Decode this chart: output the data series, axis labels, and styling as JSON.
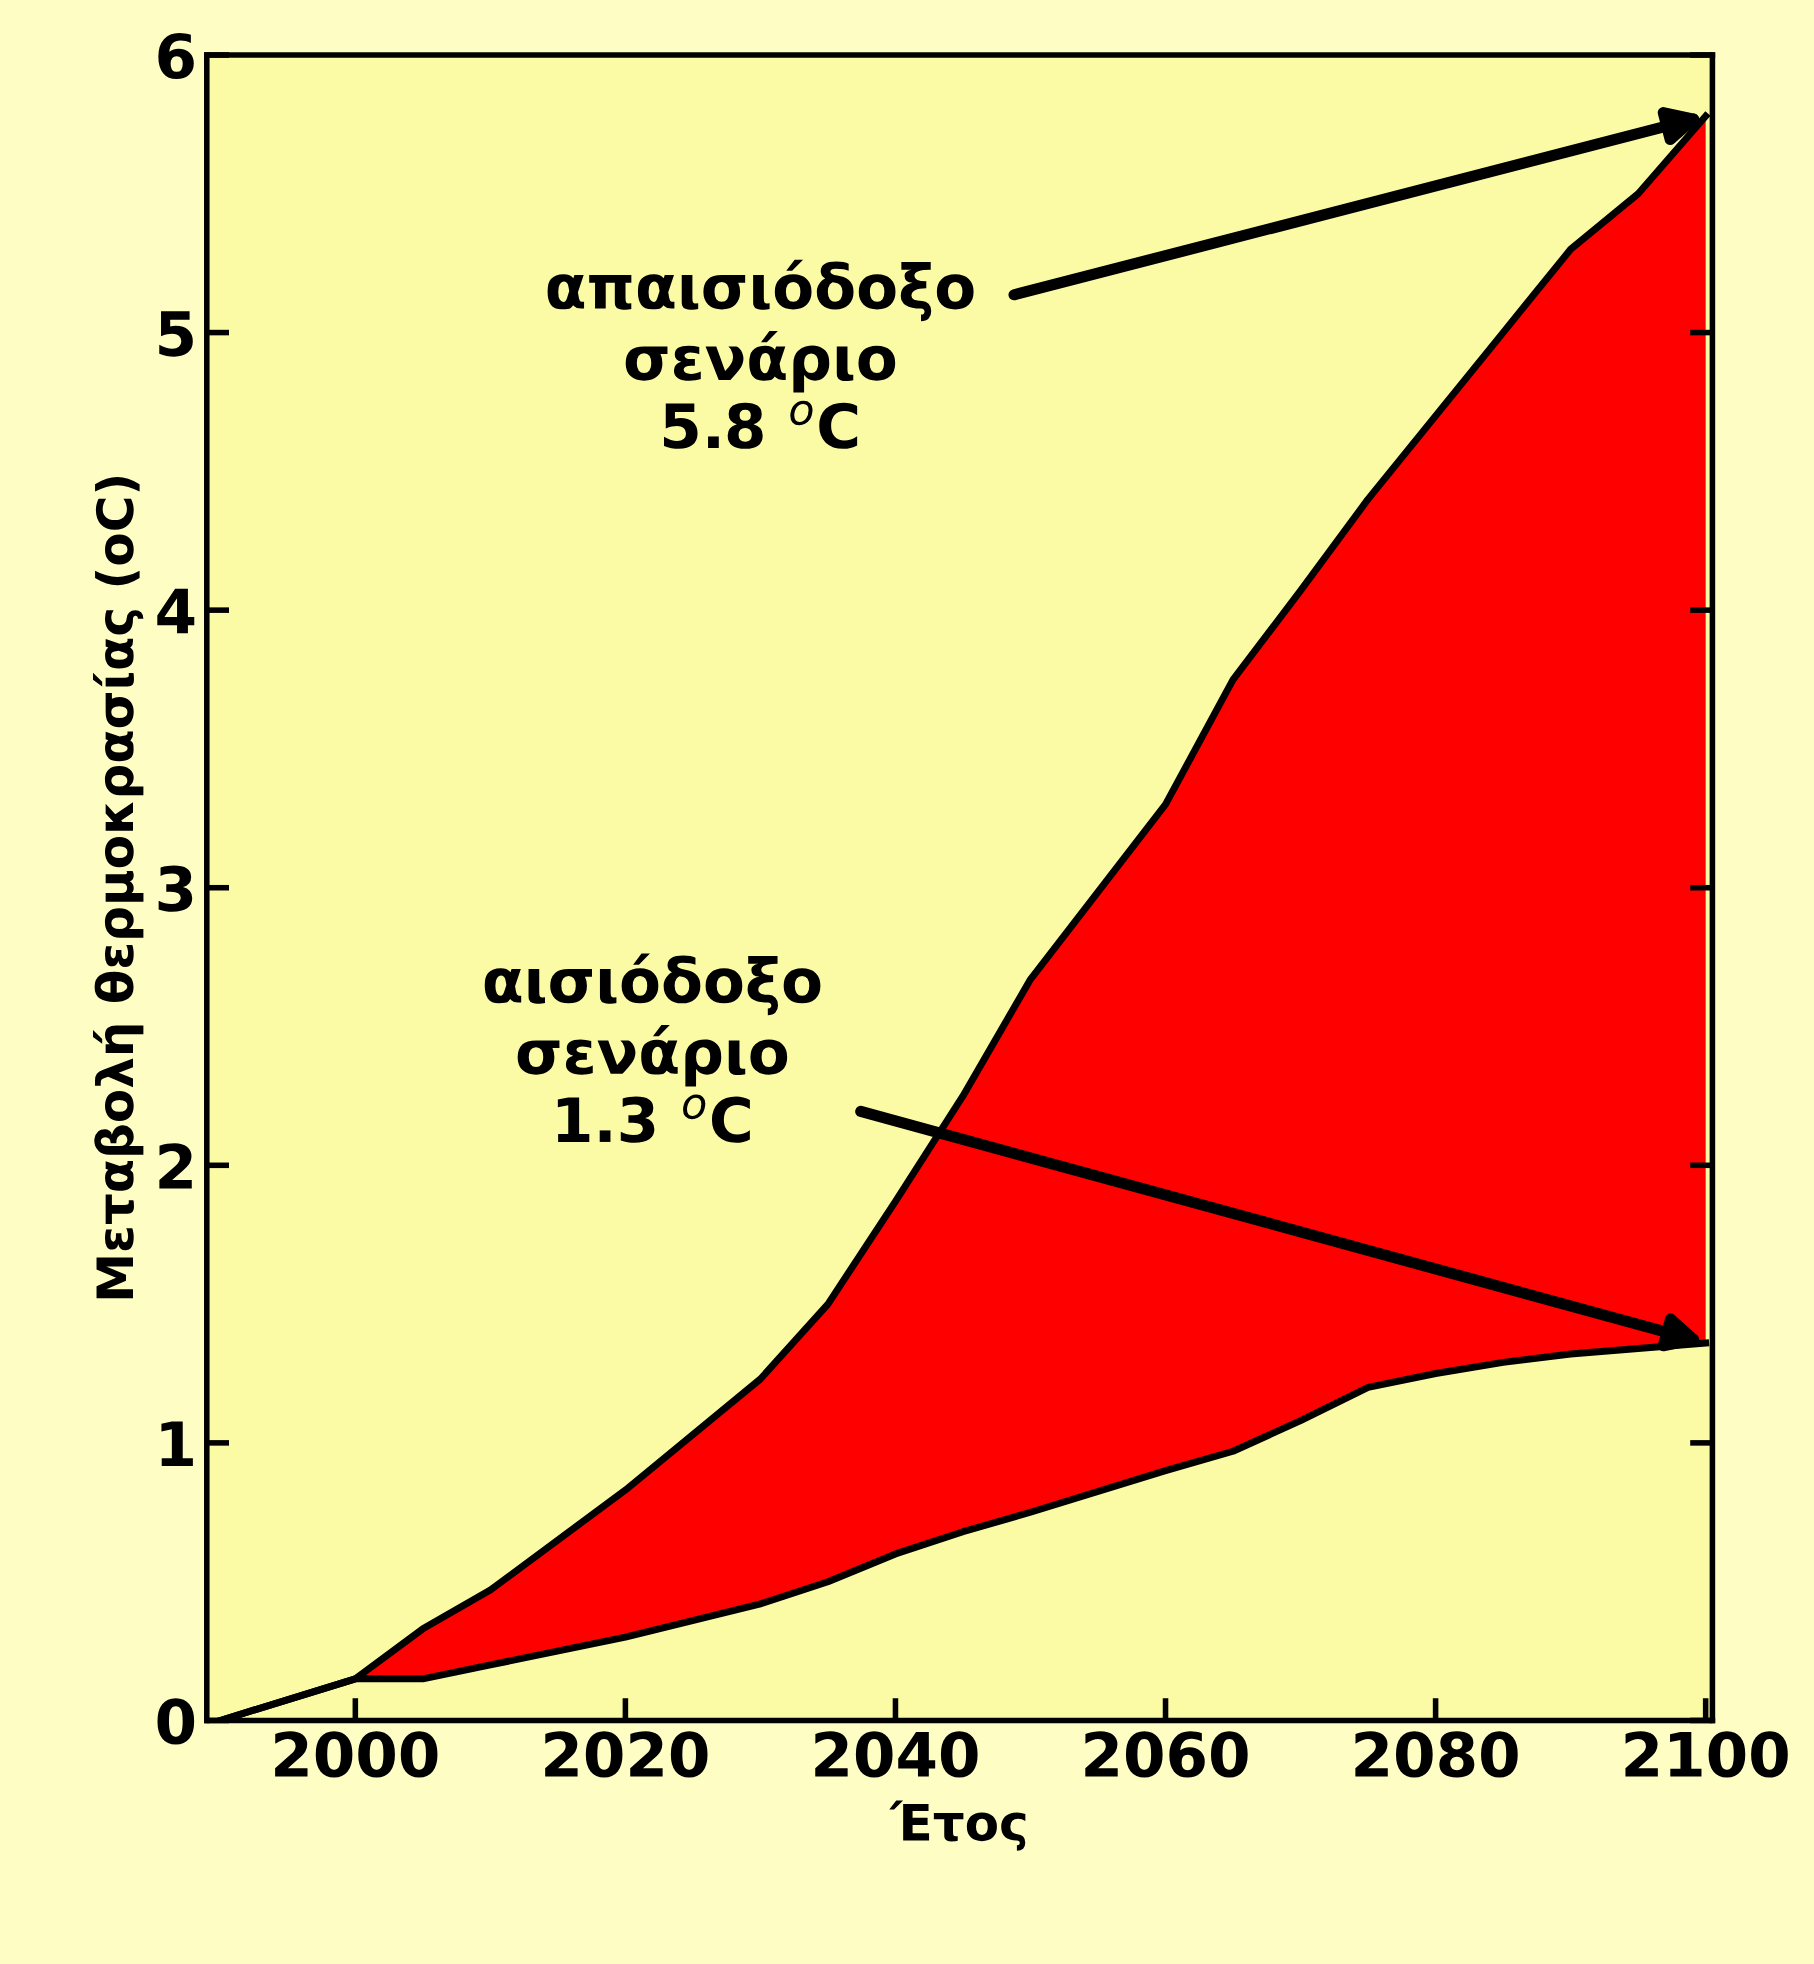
{
  "chart_data": {
    "type": "area",
    "stacked": true,
    "xlabel": "Έτος",
    "ylabel": "Μεταβολή θερμοκρασίας (oC)",
    "x": [
      1990,
      2000,
      2005,
      2010,
      2020,
      2030,
      2035,
      2040,
      2045,
      2050,
      2060,
      2065,
      2070,
      2075,
      2080,
      2085,
      2090,
      2095,
      2100
    ],
    "series": [
      {
        "color": "#fbfba6",
        "values": [
          0,
          0.15,
          0.15,
          0.2,
          0.3,
          0.42,
          0.5,
          0.6,
          0.68,
          0.75,
          0.9,
          0.97,
          1.08,
          1.2,
          1.25,
          1.29,
          1.32,
          1.34,
          1.36
        ]
      },
      {
        "color": "#ff0000",
        "values": [
          0,
          0,
          0.18,
          0.27,
          0.53,
          0.81,
          1.0,
          1.27,
          1.57,
          1.92,
          2.4,
          2.78,
          2.99,
          3.2,
          3.45,
          3.71,
          3.98,
          4.16,
          4.42
        ]
      }
    ],
    "xlim": [
      1989,
      2100.5
    ],
    "ylim": [
      0,
      6
    ],
    "xticks": [
      2000,
      2020,
      2040,
      2060,
      2080,
      2100
    ],
    "yticks": [
      0,
      1,
      2,
      3,
      4,
      5,
      6
    ],
    "grid": false,
    "annotations": [
      {
        "text": "απαισιόδοξο\nσενάριο\n5.8 $^{o}$C",
        "x": 2100,
        "y": 5.78
      },
      {
        "text": "αισιόδοξο\nσενάριο\n1.3 $^{o}$C",
        "x": 2100,
        "y": 1.36
      }
    ]
  }
}
